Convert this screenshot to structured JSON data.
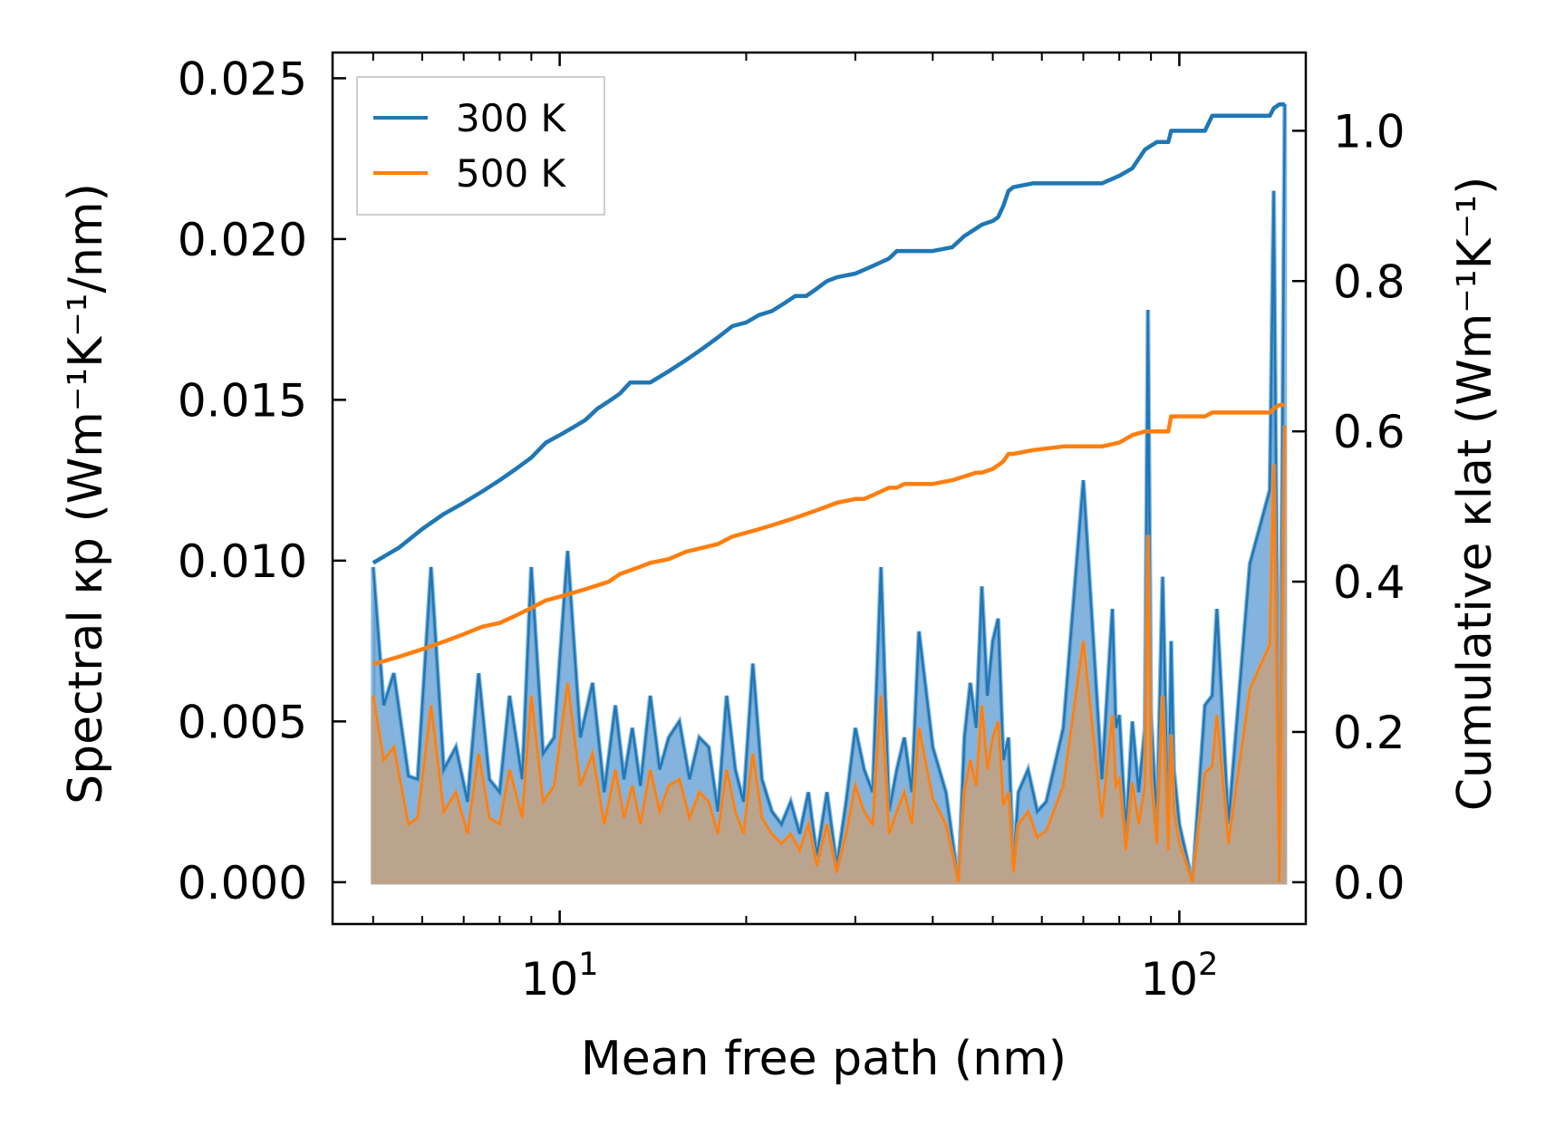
{
  "chart_data": {
    "type": "line",
    "x_scale": "log",
    "xlabel": "Mean free path (nm)",
    "ylabel_left": "Spectral κp (Wm⁻¹K⁻¹/nm)",
    "ylabel_right": "Cumulative κlat (Wm⁻¹K⁻¹)",
    "xlim": [
      4.3,
      160
    ],
    "ylim_left": [
      -0.0013,
      0.0258
    ],
    "ylim_right": [
      -0.0556,
      1.1041
    ],
    "x_tick_labels": [
      {
        "value": 10,
        "base": "10",
        "exp": "1"
      },
      {
        "value": 100,
        "base": "10",
        "exp": "2"
      }
    ],
    "y_ticks_left": [
      0.0,
      0.005,
      0.01,
      0.015,
      0.02,
      0.025
    ],
    "y_tick_labels_left": [
      "0.000",
      "0.005",
      "0.010",
      "0.015",
      "0.020",
      "0.025"
    ],
    "y_ticks_right": [
      0.0,
      0.2,
      0.4,
      0.6,
      0.8,
      1.0
    ],
    "y_tick_labels_right": [
      "0.0",
      "0.2",
      "0.4",
      "0.6",
      "0.8",
      "1.0"
    ],
    "legend": {
      "position": "top-left",
      "entries": [
        "300 K",
        "500 K"
      ]
    },
    "colors": {
      "300 K": "#1f77b4",
      "500 K": "#ff7f0e",
      "fill_300": "#5b9bd1",
      "fill_500": "#c8a07a"
    },
    "spectral_series": [
      {
        "name": "300 K",
        "x": [
          5.0,
          5.2,
          5.4,
          5.7,
          5.9,
          6.2,
          6.5,
          6.8,
          7.1,
          7.4,
          7.7,
          8.0,
          8.3,
          8.7,
          9.0,
          9.4,
          9.8,
          10.3,
          10.8,
          11.3,
          11.8,
          12.3,
          12.7,
          13.1,
          13.5,
          14.0,
          14.5,
          15.0,
          15.6,
          16.2,
          16.8,
          17.4,
          18.0,
          18.6,
          19.2,
          19.8,
          20.5,
          21.2,
          22.0,
          22.8,
          23.6,
          24.4,
          25.2,
          26.0,
          27.0,
          28.0,
          29.0,
          30.0,
          31.0,
          32.0,
          33.0,
          34.0,
          35.0,
          36.0,
          37.0,
          38.0,
          40.0,
          42.0,
          44.0,
          45.0,
          46.0,
          47.0,
          48.0,
          49.0,
          50.0,
          51.0,
          52.0,
          53.0,
          54.0,
          55.0,
          57.0,
          59.0,
          61.0,
          65.0,
          70.0,
          75.0,
          78.0,
          79.0,
          80.0,
          82.0,
          84.0,
          86.0,
          88.0,
          89.0,
          90.0,
          92.0,
          94.0,
          96.0,
          97.0,
          98.0,
          100.0,
          105.0,
          110.0,
          113.0,
          115.0,
          120.0,
          130.0,
          140.0,
          142.0,
          145.0,
          148.0
        ],
        "values": [
          0.0098,
          0.0055,
          0.0065,
          0.0033,
          0.0032,
          0.0098,
          0.0035,
          0.0042,
          0.0025,
          0.0065,
          0.0032,
          0.0028,
          0.0058,
          0.0032,
          0.0098,
          0.004,
          0.0045,
          0.0103,
          0.0045,
          0.0062,
          0.0028,
          0.0055,
          0.0032,
          0.0048,
          0.003,
          0.0058,
          0.0035,
          0.0045,
          0.005,
          0.0032,
          0.0045,
          0.0042,
          0.0022,
          0.0058,
          0.0035,
          0.0025,
          0.0068,
          0.0032,
          0.0022,
          0.0018,
          0.0025,
          0.0015,
          0.0028,
          0.0008,
          0.0028,
          0.0005,
          0.0025,
          0.0048,
          0.0035,
          0.0028,
          0.0098,
          0.0022,
          0.0035,
          0.0045,
          0.0028,
          0.0078,
          0.0042,
          0.0028,
          0.0,
          0.0045,
          0.0062,
          0.0048,
          0.0092,
          0.0058,
          0.0075,
          0.0082,
          0.0038,
          0.0045,
          0.0005,
          0.0028,
          0.0035,
          0.0022,
          0.0025,
          0.0048,
          0.0125,
          0.0032,
          0.0085,
          0.0048,
          0.0052,
          0.0015,
          0.005,
          0.0028,
          0.0048,
          0.0178,
          0.0052,
          0.0018,
          0.0095,
          0.0015,
          0.0075,
          0.0035,
          0.0018,
          0.0,
          0.0055,
          0.0058,
          0.0085,
          0.0018,
          0.0099,
          0.0122,
          0.0215,
          0.0,
          0.0242
        ]
      },
      {
        "name": "500 K",
        "x": [
          5.0,
          5.2,
          5.4,
          5.7,
          5.9,
          6.2,
          6.5,
          6.8,
          7.1,
          7.4,
          7.7,
          8.0,
          8.3,
          8.7,
          9.0,
          9.4,
          9.8,
          10.3,
          10.8,
          11.3,
          11.8,
          12.3,
          12.7,
          13.1,
          13.5,
          14.0,
          14.5,
          15.0,
          15.6,
          16.2,
          16.8,
          17.4,
          18.0,
          18.6,
          19.2,
          19.8,
          20.5,
          21.2,
          22.0,
          22.8,
          23.6,
          24.4,
          25.2,
          26.0,
          27.0,
          28.0,
          29.0,
          30.0,
          31.0,
          32.0,
          33.0,
          34.0,
          35.0,
          36.0,
          37.0,
          38.0,
          40.0,
          42.0,
          44.0,
          45.0,
          46.0,
          47.0,
          48.0,
          49.0,
          50.0,
          51.0,
          52.0,
          53.0,
          54.0,
          55.0,
          57.0,
          59.0,
          61.0,
          65.0,
          70.0,
          75.0,
          78.0,
          79.0,
          80.0,
          82.0,
          84.0,
          86.0,
          88.0,
          89.0,
          90.0,
          92.0,
          94.0,
          96.0,
          97.0,
          98.0,
          100.0,
          105.0,
          110.0,
          113.0,
          115.0,
          120.0,
          130.0,
          140.0,
          142.0,
          145.0,
          148.0
        ],
        "values": [
          0.0058,
          0.0038,
          0.0042,
          0.0018,
          0.002,
          0.0055,
          0.0022,
          0.0028,
          0.0015,
          0.004,
          0.002,
          0.0018,
          0.0035,
          0.002,
          0.0058,
          0.0025,
          0.003,
          0.0062,
          0.003,
          0.004,
          0.0018,
          0.0035,
          0.002,
          0.003,
          0.0018,
          0.0035,
          0.0022,
          0.003,
          0.0032,
          0.002,
          0.0028,
          0.0025,
          0.0015,
          0.0035,
          0.0022,
          0.0015,
          0.004,
          0.002,
          0.0015,
          0.0012,
          0.0015,
          0.001,
          0.0018,
          0.0005,
          0.0018,
          0.0003,
          0.0015,
          0.003,
          0.0022,
          0.0018,
          0.0058,
          0.0015,
          0.0022,
          0.0028,
          0.0018,
          0.0048,
          0.0026,
          0.0018,
          0.0,
          0.0028,
          0.0038,
          0.003,
          0.0055,
          0.0035,
          0.0045,
          0.005,
          0.0024,
          0.0028,
          0.0003,
          0.0018,
          0.0022,
          0.0014,
          0.0016,
          0.003,
          0.0075,
          0.002,
          0.0052,
          0.003,
          0.0032,
          0.001,
          0.0031,
          0.0018,
          0.003,
          0.0108,
          0.0032,
          0.0012,
          0.0058,
          0.001,
          0.0046,
          0.0022,
          0.0012,
          0.0,
          0.0034,
          0.0036,
          0.0052,
          0.0012,
          0.006,
          0.0074,
          0.013,
          0.0,
          0.0142
        ]
      }
    ],
    "cumulative_series": [
      {
        "name": "300 K",
        "x": [
          5.0,
          5.5,
          6.0,
          6.5,
          7.0,
          7.5,
          8.0,
          8.5,
          9.0,
          9.5,
          10.0,
          10.5,
          11.0,
          11.5,
          12.0,
          12.5,
          13.0,
          13.5,
          14.0,
          15.0,
          16.0,
          17.0,
          18.0,
          19.0,
          20.0,
          21.0,
          22.0,
          23.0,
          24.0,
          25.0,
          26.0,
          27.0,
          28.0,
          30.0,
          31.0,
          32.0,
          33.0,
          34.0,
          35.0,
          36.0,
          38.0,
          40.0,
          43.0,
          45.0,
          47.0,
          48.0,
          50.0,
          51.0,
          52.0,
          53.0,
          54.0,
          58.0,
          65.0,
          75.0,
          80.0,
          84.0,
          88.0,
          90.0,
          92.0,
          96.0,
          97.0,
          98.0,
          110.0,
          113.0,
          140.0,
          142.0,
          145.0,
          148.0
        ],
        "values": [
          0.425,
          0.445,
          0.47,
          0.49,
          0.505,
          0.52,
          0.535,
          0.55,
          0.565,
          0.585,
          0.595,
          0.605,
          0.615,
          0.63,
          0.64,
          0.65,
          0.665,
          0.665,
          0.665,
          0.68,
          0.695,
          0.71,
          0.725,
          0.74,
          0.745,
          0.755,
          0.76,
          0.77,
          0.78,
          0.78,
          0.79,
          0.8,
          0.805,
          0.81,
          0.815,
          0.82,
          0.825,
          0.83,
          0.84,
          0.84,
          0.84,
          0.84,
          0.845,
          0.86,
          0.87,
          0.875,
          0.88,
          0.885,
          0.9,
          0.92,
          0.925,
          0.93,
          0.93,
          0.93,
          0.94,
          0.95,
          0.975,
          0.98,
          0.985,
          0.985,
          1.0,
          1.0,
          1.0,
          1.02,
          1.02,
          1.03,
          1.035,
          1.035
        ]
      },
      {
        "name": "500 K",
        "x": [
          5.0,
          5.5,
          6.0,
          6.5,
          7.0,
          7.5,
          8.0,
          8.5,
          9.0,
          9.5,
          10.0,
          10.5,
          11.0,
          11.5,
          12.0,
          12.5,
          13.0,
          13.5,
          14.0,
          15.0,
          16.0,
          17.0,
          18.0,
          19.0,
          20.0,
          21.0,
          22.0,
          23.0,
          24.0,
          25.0,
          26.0,
          27.0,
          28.0,
          30.0,
          31.0,
          32.0,
          33.0,
          34.0,
          35.0,
          36.0,
          38.0,
          40.0,
          43.0,
          45.0,
          47.0,
          48.0,
          50.0,
          51.0,
          52.0,
          53.0,
          54.0,
          58.0,
          65.0,
          75.0,
          80.0,
          84.0,
          88.0,
          90.0,
          92.0,
          96.0,
          97.0,
          98.0,
          110.0,
          113.0,
          140.0,
          142.0,
          145.0,
          148.0
        ],
        "values": [
          0.29,
          0.3,
          0.31,
          0.32,
          0.33,
          0.34,
          0.345,
          0.355,
          0.365,
          0.375,
          0.38,
          0.385,
          0.39,
          0.395,
          0.4,
          0.41,
          0.415,
          0.42,
          0.425,
          0.43,
          0.44,
          0.445,
          0.45,
          0.46,
          0.465,
          0.47,
          0.475,
          0.48,
          0.485,
          0.49,
          0.495,
          0.5,
          0.505,
          0.51,
          0.51,
          0.515,
          0.52,
          0.525,
          0.525,
          0.53,
          0.53,
          0.53,
          0.535,
          0.54,
          0.545,
          0.545,
          0.55,
          0.555,
          0.56,
          0.57,
          0.57,
          0.575,
          0.58,
          0.58,
          0.585,
          0.595,
          0.6,
          0.6,
          0.6,
          0.6,
          0.62,
          0.62,
          0.62,
          0.625,
          0.625,
          0.63,
          0.635,
          0.635
        ]
      }
    ]
  }
}
